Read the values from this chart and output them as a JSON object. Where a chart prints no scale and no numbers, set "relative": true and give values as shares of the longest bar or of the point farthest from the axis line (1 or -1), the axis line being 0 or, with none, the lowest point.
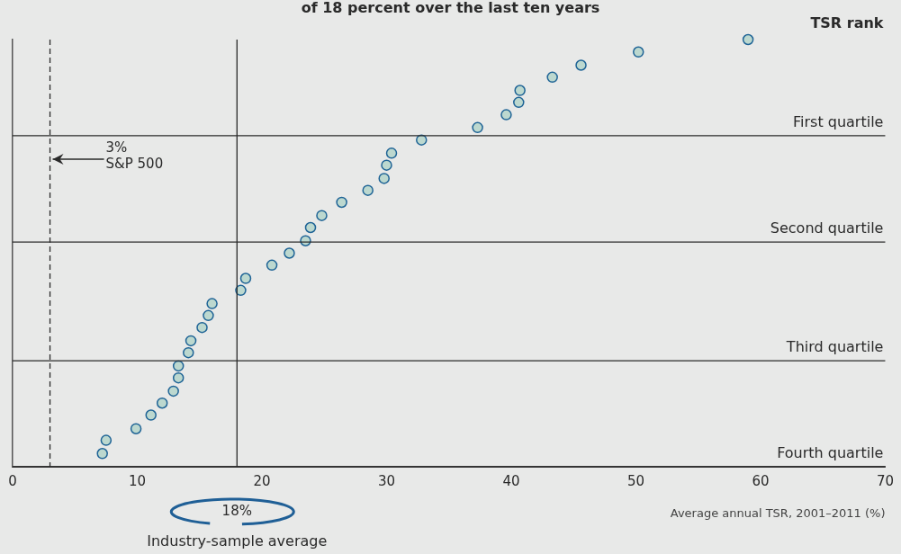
{
  "chart_data": {
    "type": "scatter",
    "title": "of 18 percent over the last ten years",
    "xlabel": "Average annual TSR, 2001–2011 (%)",
    "ylabel": "TSR rank",
    "relative": true,
    "marker": "circle",
    "color": "#bcd8cf",
    "x": [
      59.0,
      50.2,
      45.6,
      43.3,
      40.7,
      40.6,
      39.6,
      37.3,
      32.8,
      30.4,
      30.0,
      29.8,
      28.5,
      26.4,
      24.8,
      23.9,
      23.5,
      22.2,
      20.8,
      18.7,
      18.3,
      16.0,
      15.7,
      15.2,
      14.3,
      14.1,
      13.3,
      13.3,
      12.9,
      12.0,
      11.1,
      9.9,
      7.5,
      7.2
    ],
    "values": [
      1.0,
      0.971,
      0.94,
      0.912,
      0.881,
      0.853,
      0.824,
      0.794,
      0.765,
      0.734,
      0.706,
      0.675,
      0.647,
      0.619,
      0.588,
      0.56,
      0.529,
      0.5,
      0.472,
      0.441,
      0.413,
      0.382,
      0.354,
      0.326,
      0.295,
      0.267,
      0.236,
      0.208,
      0.177,
      0.149,
      0.121,
      0.089,
      0.062,
      0.031
    ],
    "xlim": [
      0,
      70
    ],
    "xticks": [
      0,
      10,
      20,
      30,
      40,
      50,
      60,
      70
    ],
    "ref_lines": [
      {
        "axis": "x",
        "value": 3,
        "label": "3%\nS&P 500",
        "line_style": "dashed"
      },
      {
        "axis": "x",
        "value": 18,
        "label": "18%",
        "line_style": "solid"
      },
      {
        "axis": "y",
        "value": 0.775,
        "label": "First quartile"
      },
      {
        "axis": "y",
        "value": 0.526,
        "label": "Second quartile"
      },
      {
        "axis": "y",
        "value": 0.248,
        "label": "Third quartile"
      },
      {
        "axis": "y",
        "value": 0,
        "label": "Fourth quartile"
      }
    ],
    "annotations": [
      "Industry-sample average"
    ]
  }
}
